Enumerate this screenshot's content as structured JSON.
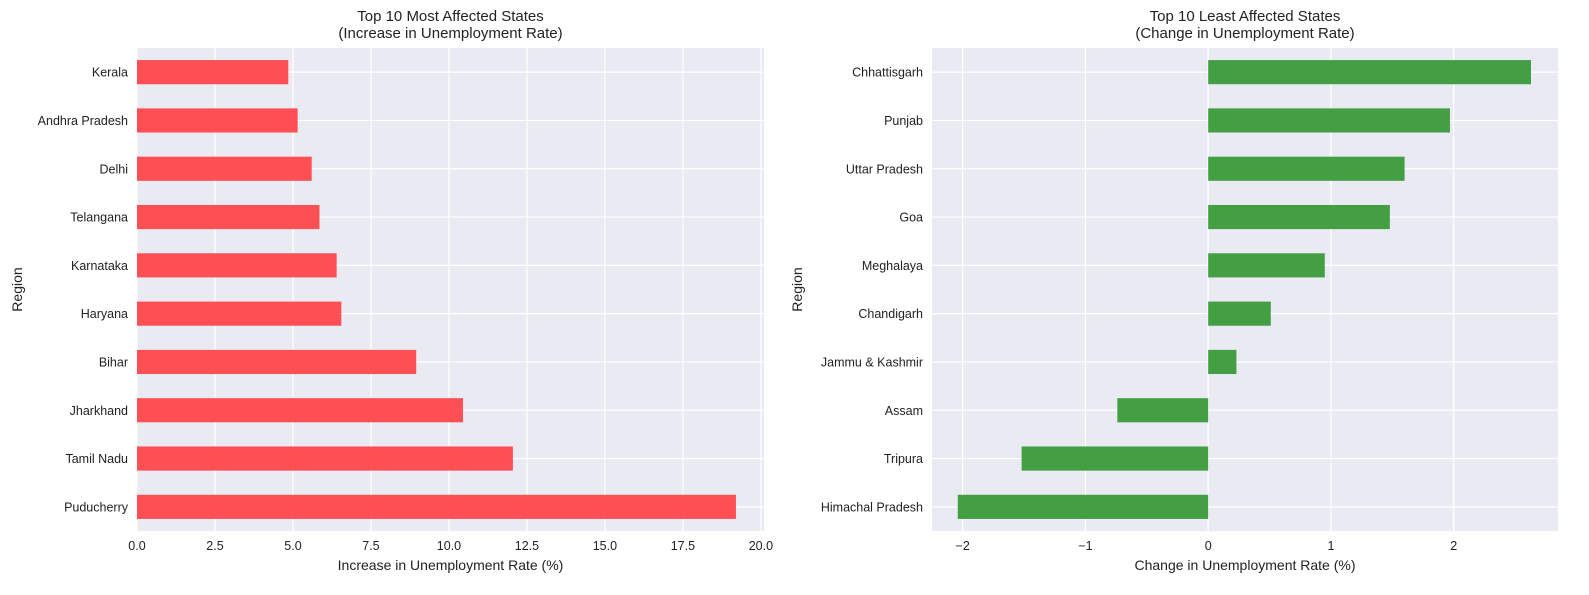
{
  "chart_data": [
    {
      "type": "bar",
      "orientation": "horizontal",
      "title": "Top 10 Most Affected States\n(Increase in Unemployment Rate)",
      "xlabel": "Increase in Unemployment Rate (%)",
      "ylabel": "Region",
      "categories": [
        "Puducherry",
        "Tamil Nadu",
        "Jharkhand",
        "Bihar",
        "Haryana",
        "Karnataka",
        "Telangana",
        "Delhi",
        "Andhra Pradesh",
        "Kerala"
      ],
      "values": [
        19.2,
        12.05,
        10.45,
        8.95,
        6.55,
        6.4,
        5.85,
        5.6,
        5.15,
        4.85
      ],
      "xlim": [
        0,
        20.1
      ],
      "xticks": [
        0,
        2.5,
        5,
        7.5,
        10,
        12.5,
        15,
        17.5,
        20
      ],
      "xtick_labels": [
        "0.0",
        "2.5",
        "5.0",
        "7.5",
        "10.0",
        "12.5",
        "15.0",
        "17.5",
        "20.0"
      ],
      "color": "#ff474c",
      "grid": true
    },
    {
      "type": "bar",
      "orientation": "horizontal",
      "title": "Top 10 Least Affected States\n(Change in Unemployment Rate)",
      "xlabel": "Change in Unemployment Rate (%)",
      "ylabel": "Region",
      "categories": [
        "Himachal Pradesh",
        "Tripura",
        "Assam",
        "Jammu & Kashmir",
        "Chandigarh",
        "Meghalaya",
        "Goa",
        "Uttar Pradesh",
        "Punjab",
        "Chhattisgarh"
      ],
      "values": [
        -2.04,
        -1.52,
        -0.74,
        0.23,
        0.51,
        0.95,
        1.48,
        1.6,
        1.97,
        2.63
      ],
      "xlim": [
        -2.25,
        2.85
      ],
      "xticks": [
        -2,
        -1,
        0,
        1,
        2
      ],
      "xtick_labels": [
        "−2",
        "−1",
        "0",
        "1",
        "2"
      ],
      "color": "#3a9a3a",
      "grid": true
    }
  ]
}
